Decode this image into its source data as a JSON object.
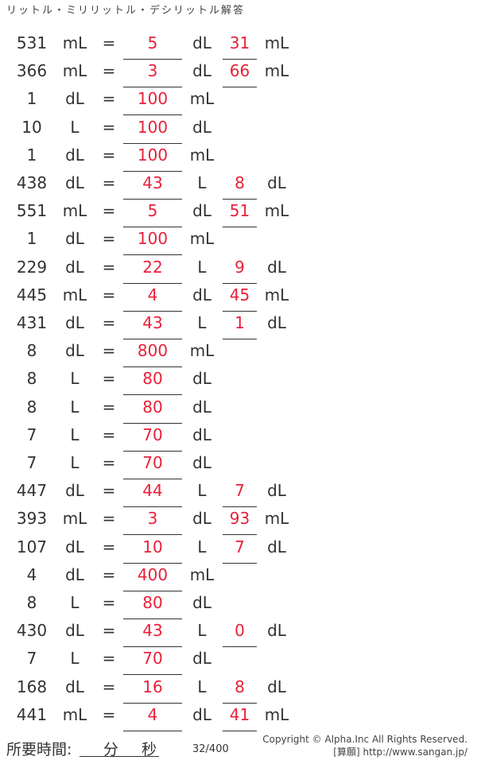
{
  "title": "リットル・ミリリットル・デシリットル解答",
  "rows": [
    {
      "q": "531",
      "qu": "mL",
      "a1": "5",
      "u1": "dL",
      "a2": "31",
      "u2": "mL"
    },
    {
      "q": "366",
      "qu": "mL",
      "a1": "3",
      "u1": "dL",
      "a2": "66",
      "u2": "mL"
    },
    {
      "q": "1",
      "qu": "dL",
      "a1": "100",
      "u1": "mL"
    },
    {
      "q": "10",
      "qu": "L",
      "a1": "100",
      "u1": "dL"
    },
    {
      "q": "1",
      "qu": "dL",
      "a1": "100",
      "u1": "mL"
    },
    {
      "q": "438",
      "qu": "dL",
      "a1": "43",
      "u1": "L",
      "a2": "8",
      "u2": "dL"
    },
    {
      "q": "551",
      "qu": "mL",
      "a1": "5",
      "u1": "dL",
      "a2": "51",
      "u2": "mL"
    },
    {
      "q": "1",
      "qu": "dL",
      "a1": "100",
      "u1": "mL"
    },
    {
      "q": "229",
      "qu": "dL",
      "a1": "22",
      "u1": "L",
      "a2": "9",
      "u2": "dL"
    },
    {
      "q": "445",
      "qu": "mL",
      "a1": "4",
      "u1": "dL",
      "a2": "45",
      "u2": "mL"
    },
    {
      "q": "431",
      "qu": "dL",
      "a1": "43",
      "u1": "L",
      "a2": "1",
      "u2": "dL"
    },
    {
      "q": "8",
      "qu": "dL",
      "a1": "800",
      "u1": "mL"
    },
    {
      "q": "8",
      "qu": "L",
      "a1": "80",
      "u1": "dL"
    },
    {
      "q": "8",
      "qu": "L",
      "a1": "80",
      "u1": "dL"
    },
    {
      "q": "7",
      "qu": "L",
      "a1": "70",
      "u1": "dL"
    },
    {
      "q": "7",
      "qu": "L",
      "a1": "70",
      "u1": "dL"
    },
    {
      "q": "447",
      "qu": "dL",
      "a1": "44",
      "u1": "L",
      "a2": "7",
      "u2": "dL"
    },
    {
      "q": "393",
      "qu": "mL",
      "a1": "3",
      "u1": "dL",
      "a2": "93",
      "u2": "mL"
    },
    {
      "q": "107",
      "qu": "dL",
      "a1": "10",
      "u1": "L",
      "a2": "7",
      "u2": "dL"
    },
    {
      "q": "4",
      "qu": "dL",
      "a1": "400",
      "u1": "mL"
    },
    {
      "q": "8",
      "qu": "L",
      "a1": "80",
      "u1": "dL"
    },
    {
      "q": "430",
      "qu": "dL",
      "a1": "43",
      "u1": "L",
      "a2": "0",
      "u2": "dL"
    },
    {
      "q": "7",
      "qu": "L",
      "a1": "70",
      "u1": "dL"
    },
    {
      "q": "168",
      "qu": "dL",
      "a1": "16",
      "u1": "L",
      "a2": "8",
      "u2": "dL"
    },
    {
      "q": "441",
      "qu": "mL",
      "a1": "4",
      "u1": "dL",
      "a2": "41",
      "u2": "mL"
    }
  ],
  "equals": "=",
  "footer": {
    "time_label": "所要時間:",
    "minutes": "分",
    "seconds": "秒",
    "page": "32/400",
    "copyright": "Copyright © Alpha.Inc All Rights Reserved.",
    "site": "[算願] http://www.sangan.jp/"
  },
  "answer_color": "#e8213a"
}
